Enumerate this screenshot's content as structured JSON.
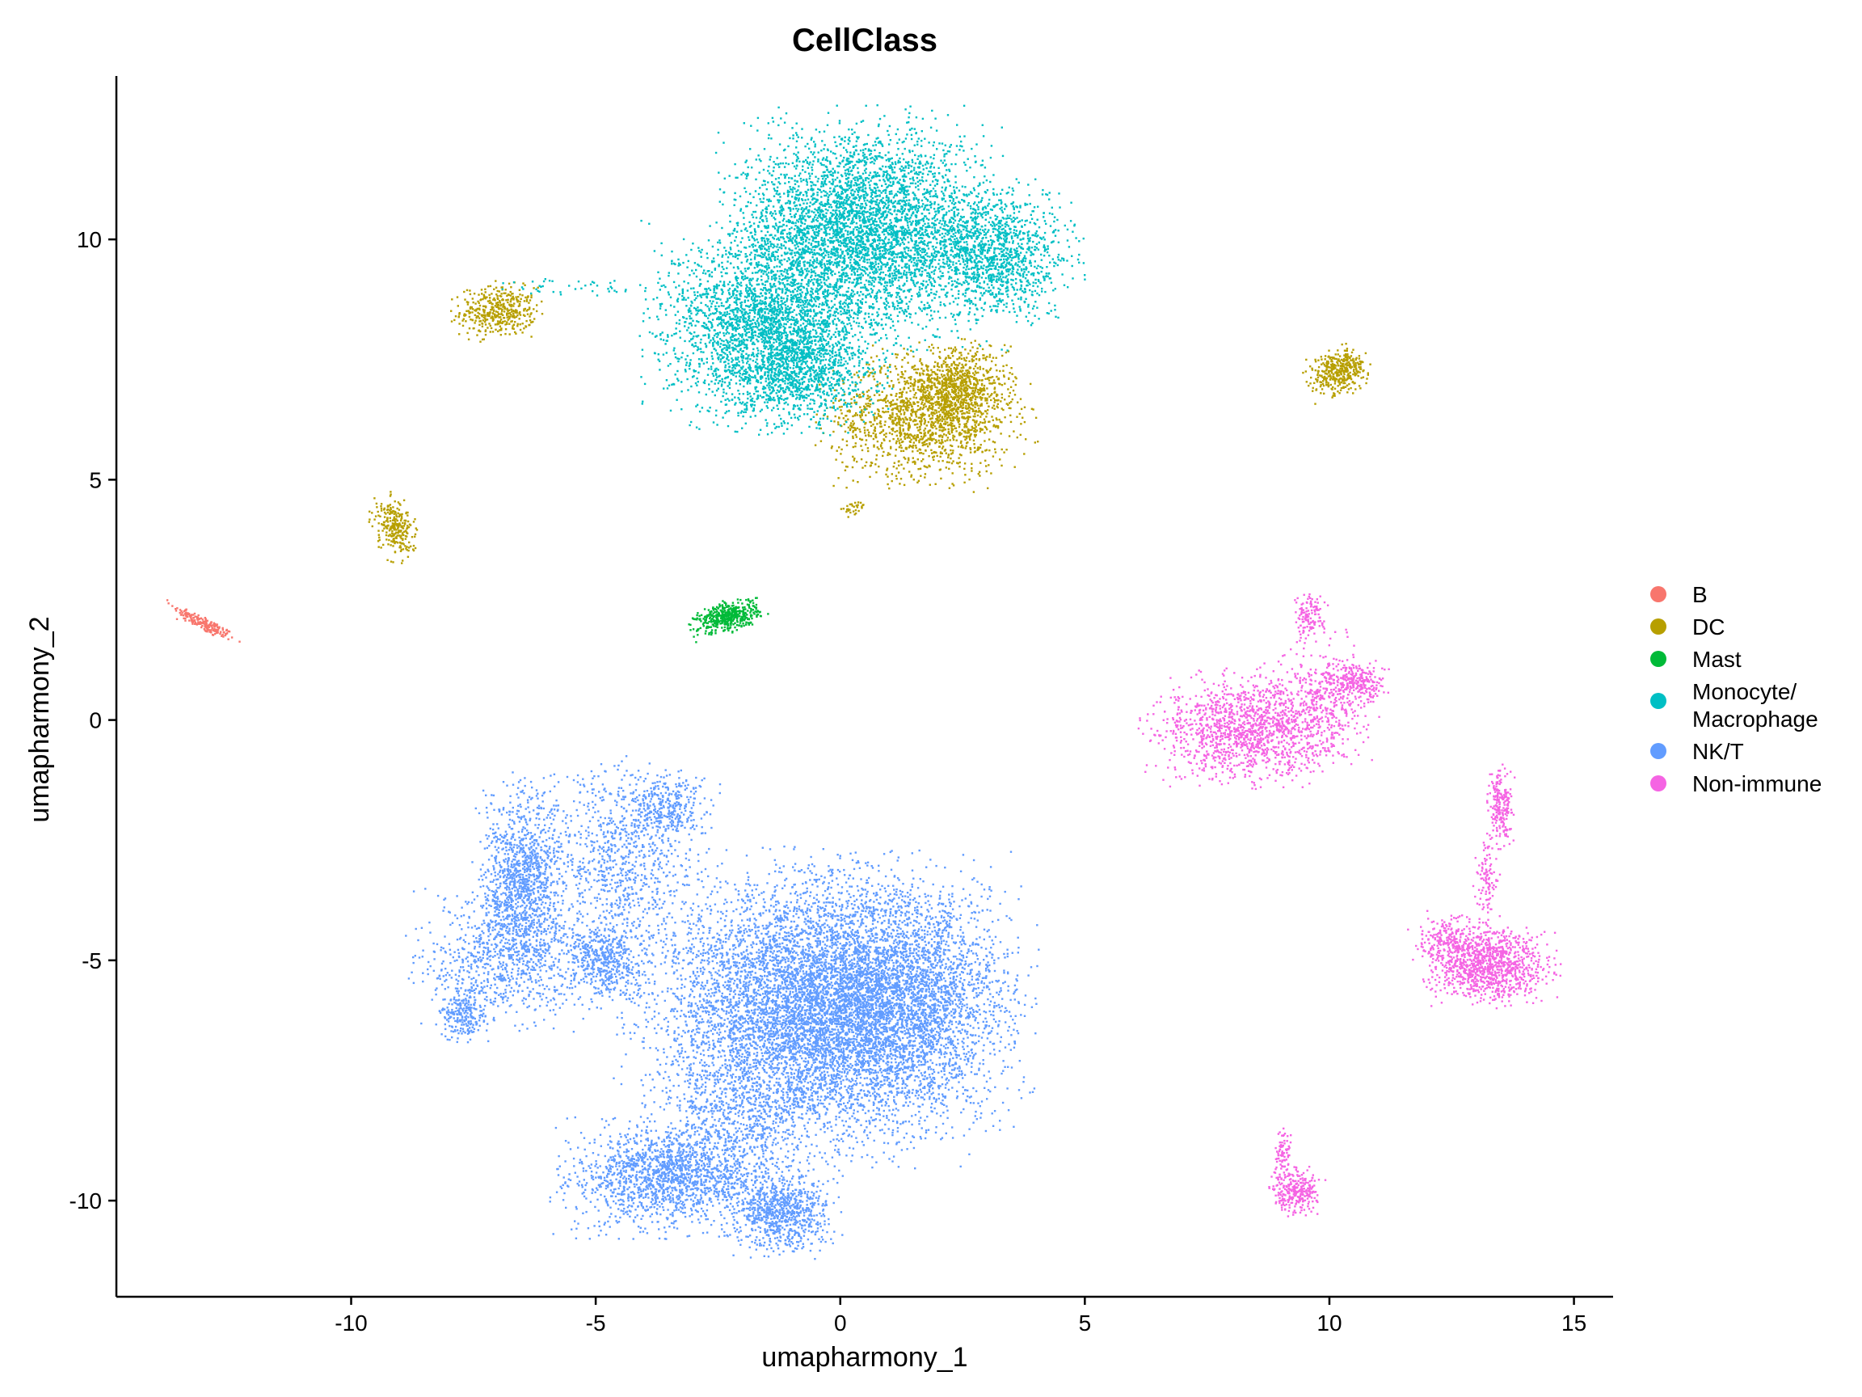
{
  "chart_data": {
    "type": "scatter",
    "title": "CellClass",
    "xlabel": "umapharmony_1",
    "ylabel": "umapharmony_2",
    "xlim": [
      -14.8,
      15.8
    ],
    "ylim": [
      -12.0,
      13.4
    ],
    "x_ticks": [
      -10,
      -5,
      0,
      5,
      10,
      15
    ],
    "x_tick_labels": [
      "-10",
      "-5",
      "0",
      "5",
      "10",
      "15"
    ],
    "y_ticks": [
      -10,
      -5,
      0,
      5,
      10
    ],
    "y_tick_labels": [
      "-10",
      "-5",
      "0",
      "5",
      "10"
    ],
    "grid": false,
    "legend_position": "right",
    "legend": [
      {
        "label_lines": [
          "B"
        ],
        "color": "#F8766D"
      },
      {
        "label_lines": [
          "DC"
        ],
        "color": "#B79F00"
      },
      {
        "label_lines": [
          "Mast"
        ],
        "color": "#00BA38"
      },
      {
        "label_lines": [
          "Monocyte/",
          "Macrophage"
        ],
        "color": "#00BFC4"
      },
      {
        "label_lines": [
          "NK/T"
        ],
        "color": "#619CFF"
      },
      {
        "label_lines": [
          "Non-immune"
        ],
        "color": "#F564E3"
      }
    ],
    "series": [
      {
        "name": "B",
        "color": "#F8766D",
        "clusters": [
          {
            "cx": -13.0,
            "cy": 2.0,
            "sx": 0.35,
            "sy": 0.07,
            "rot": -28,
            "n": 180
          }
        ]
      },
      {
        "name": "DC",
        "color": "#B79F00",
        "clusters": [
          {
            "cx": -7.0,
            "cy": 8.5,
            "sx": 0.38,
            "sy": 0.25,
            "rot": 0,
            "n": 420
          },
          {
            "cx": -9.1,
            "cy": 4.0,
            "sx": 0.18,
            "sy": 0.3,
            "rot": 20,
            "n": 260
          },
          {
            "cx": 1.7,
            "cy": 6.3,
            "sx": 0.9,
            "sy": 0.6,
            "rot": 0,
            "n": 1400
          },
          {
            "cx": 2.4,
            "cy": 6.9,
            "sx": 0.5,
            "sy": 0.4,
            "rot": 0,
            "n": 700
          },
          {
            "cx": 0.3,
            "cy": 4.4,
            "sx": 0.15,
            "sy": 0.06,
            "rot": 25,
            "n": 30
          },
          {
            "cx": 10.2,
            "cy": 7.25,
            "sx": 0.28,
            "sy": 0.2,
            "rot": 20,
            "n": 380
          }
        ]
      },
      {
        "name": "Mast",
        "color": "#00BA38",
        "clusters": [
          {
            "cx": -2.3,
            "cy": 2.15,
            "sx": 0.32,
            "sy": 0.14,
            "rot": 15,
            "n": 460
          }
        ]
      },
      {
        "name": "Monocyte/\nMacrophage",
        "color": "#00BFC4",
        "clusters": [
          {
            "cx": 0.5,
            "cy": 10.2,
            "sx": 1.2,
            "sy": 1.0,
            "rot": 0,
            "n": 4200
          },
          {
            "cx": -1.5,
            "cy": 8.2,
            "sx": 1.0,
            "sy": 0.9,
            "rot": 0,
            "n": 2600
          },
          {
            "cx": 3.2,
            "cy": 9.7,
            "sx": 0.7,
            "sy": 0.6,
            "rot": 0,
            "n": 1200
          },
          {
            "cx": -0.8,
            "cy": 7.2,
            "sx": 0.7,
            "sy": 0.5,
            "rot": 0,
            "n": 800
          },
          {
            "cx": -5.3,
            "cy": 9.0,
            "sx": 1.0,
            "sy": 0.1,
            "rot": 0,
            "n": 45
          }
        ]
      },
      {
        "name": "NK/T",
        "color": "#619CFF",
        "clusters": [
          {
            "cx": -0.5,
            "cy": -6.0,
            "sx": 1.6,
            "sy": 1.3,
            "rot": 0,
            "n": 6800
          },
          {
            "cx": 1.2,
            "cy": -5.8,
            "sx": 1.1,
            "sy": 1.1,
            "rot": 0,
            "n": 2400
          },
          {
            "cx": -6.5,
            "cy": -3.4,
            "sx": 0.4,
            "sy": 0.9,
            "rot": 0,
            "n": 1200
          },
          {
            "cx": -6.9,
            "cy": -5.0,
            "sx": 0.8,
            "sy": 0.7,
            "rot": 0,
            "n": 700
          },
          {
            "cx": -7.7,
            "cy": -6.1,
            "sx": 0.25,
            "sy": 0.25,
            "rot": 0,
            "n": 220
          },
          {
            "cx": -4.5,
            "cy": -3.0,
            "sx": 0.7,
            "sy": 0.9,
            "rot": 0,
            "n": 800
          },
          {
            "cx": -3.5,
            "cy": -1.8,
            "sx": 0.4,
            "sy": 0.3,
            "rot": 0,
            "n": 300
          },
          {
            "cx": -4.8,
            "cy": -5.0,
            "sx": 0.4,
            "sy": 0.4,
            "rot": 0,
            "n": 500
          },
          {
            "cx": -3.6,
            "cy": -9.5,
            "sx": 0.9,
            "sy": 0.5,
            "rot": 0,
            "n": 1500
          },
          {
            "cx": -1.2,
            "cy": -10.2,
            "sx": 0.5,
            "sy": 0.4,
            "rot": 0,
            "n": 800
          },
          {
            "cx": -2.0,
            "cy": -8.3,
            "sx": 0.8,
            "sy": 0.8,
            "rot": 0,
            "n": 700
          }
        ]
      },
      {
        "name": "Non-immune",
        "color": "#F564E3",
        "clusters": [
          {
            "cx": 8.3,
            "cy": -0.2,
            "sx": 0.85,
            "sy": 0.5,
            "rot": 0,
            "n": 1300
          },
          {
            "cx": 9.8,
            "cy": 0.4,
            "sx": 0.5,
            "sy": 0.6,
            "rot": 0,
            "n": 450
          },
          {
            "cx": 10.5,
            "cy": 0.8,
            "sx": 0.3,
            "sy": 0.18,
            "rot": 0,
            "n": 250
          },
          {
            "cx": 9.6,
            "cy": 2.2,
            "sx": 0.15,
            "sy": 0.2,
            "rot": 0,
            "n": 120
          },
          {
            "cx": 13.3,
            "cy": -5.1,
            "sx": 0.55,
            "sy": 0.35,
            "rot": 0,
            "n": 1000
          },
          {
            "cx": 12.5,
            "cy": -4.6,
            "sx": 0.35,
            "sy": 0.25,
            "rot": 0,
            "n": 250
          },
          {
            "cx": 13.5,
            "cy": -1.8,
            "sx": 0.12,
            "sy": 0.35,
            "rot": 0,
            "n": 220
          },
          {
            "cx": 13.2,
            "cy": -3.3,
            "sx": 0.12,
            "sy": 0.4,
            "rot": 0,
            "n": 100
          },
          {
            "cx": 9.3,
            "cy": -9.8,
            "sx": 0.25,
            "sy": 0.22,
            "rot": 0,
            "n": 280
          },
          {
            "cx": 9.05,
            "cy": -9.0,
            "sx": 0.08,
            "sy": 0.25,
            "rot": 0,
            "n": 70
          }
        ]
      }
    ]
  }
}
